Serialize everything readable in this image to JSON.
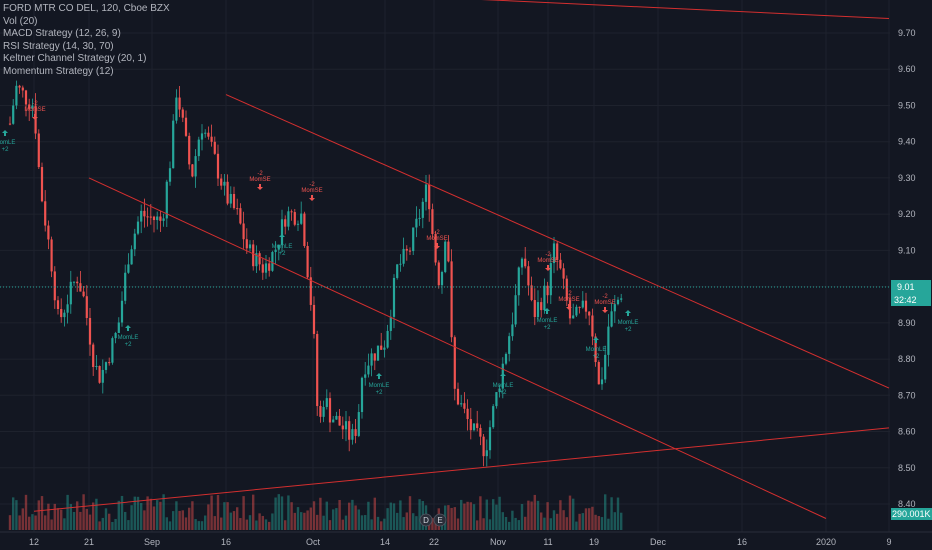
{
  "legend": {
    "symbol_line": "FORD MTR CO DEL, 120, Cboe BZX",
    "studies": [
      "Vol (20)",
      "MACD Strategy (12, 26, 9)",
      "RSI Strategy (14, 30, 70)",
      "Keltner Channel Strategy (20, 1)",
      "Momentum Strategy (12)"
    ]
  },
  "price_axis": {
    "ticks": [
      "9.70",
      "9.60",
      "9.50",
      "9.40",
      "9.30",
      "9.20",
      "9.10",
      "9.00",
      "8.90",
      "8.80",
      "8.70",
      "8.60",
      "8.50",
      "8.40"
    ],
    "last_price": "9.01",
    "countdown": "32:42",
    "volume_label": "290.001K",
    "last_price_color": "#26a69a",
    "volume_label_color": "#26a69a"
  },
  "time_axis": {
    "ticks": [
      "12",
      "21",
      "Sep",
      "16",
      "Oct",
      "14",
      "22",
      "Nov",
      "11",
      "19",
      "Dec",
      "16",
      "2020",
      "9"
    ]
  },
  "event_markers": [
    "D",
    "E"
  ],
  "signals": [
    {
      "label": "MomLE",
      "qty": "+2",
      "type": "long"
    },
    {
      "label": "MomLE",
      "qty": "+2",
      "type": "long"
    },
    {
      "label": "MomLE",
      "qty": "+2",
      "type": "long"
    },
    {
      "label": "MomLE",
      "qty": "+2",
      "type": "long"
    },
    {
      "label": "MomLE",
      "qty": "+2",
      "type": "long"
    },
    {
      "label": "MomLE",
      "qty": "+2",
      "type": "long"
    },
    {
      "label": "MomLE",
      "qty": "+2",
      "type": "long"
    },
    {
      "label": "MomLE",
      "qty": "+2",
      "type": "long"
    },
    {
      "label": "MomSE",
      "qty": "-2",
      "type": "short"
    },
    {
      "label": "MomSE",
      "qty": "-2",
      "type": "short"
    },
    {
      "label": "MomSE",
      "qty": "-2",
      "type": "short"
    },
    {
      "label": "MomSE",
      "qty": "-2",
      "type": "short"
    },
    {
      "label": "MomSE",
      "qty": "-2",
      "type": "short"
    },
    {
      "label": "MomSE",
      "qty": "-2",
      "type": "short"
    },
    {
      "label": "MomSE",
      "qty": "-2",
      "type": "short"
    }
  ],
  "colors": {
    "background": "#131722",
    "up": "#26a69a",
    "down": "#ef5350",
    "trendline": "#d32f2f",
    "grid": "#1e222d"
  },
  "chart_data": {
    "type": "candlestick",
    "ylim": [
      8.37,
      9.79
    ],
    "last_price": 9.01,
    "trendlines": [
      {
        "from": [
          "Aug 12",
          9.85
        ],
        "to": [
          "Jan 9",
          9.74
        ]
      },
      {
        "from": [
          "Sep 16",
          9.53
        ],
        "to": [
          "Jan 9",
          8.72
        ]
      },
      {
        "from": [
          "Aug 21",
          9.3
        ],
        "to": [
          "Jan 2",
          8.36
        ]
      },
      {
        "from": [
          "Aug 12",
          8.38
        ],
        "to": [
          "Jan 9",
          8.61
        ]
      }
    ],
    "price_path": [
      [
        "Aug 08",
        9.45
      ],
      [
        "Aug 09",
        9.55
      ],
      [
        "Aug 12",
        9.5
      ],
      [
        "Aug 13",
        9.28
      ],
      [
        "Aug 15",
        9.05
      ],
      [
        "Aug 16",
        8.9
      ],
      [
        "Aug 19",
        9.03
      ],
      [
        "Aug 20",
        8.98
      ],
      [
        "Aug 21",
        8.88
      ],
      [
        "Aug 22",
        8.78
      ],
      [
        "Aug 23",
        8.75
      ],
      [
        "Aug 26",
        8.88
      ],
      [
        "Aug 28",
        9.1
      ],
      [
        "Aug 30",
        9.2
      ],
      [
        "Sep 03",
        9.18
      ],
      [
        "Sep 05",
        9.38
      ],
      [
        "Sep 06",
        9.55
      ],
      [
        "Sep 09",
        9.3
      ],
      [
        "Sep 11",
        9.45
      ],
      [
        "Sep 13",
        9.38
      ],
      [
        "Sep 16",
        9.25
      ],
      [
        "Sep 18",
        9.2
      ],
      [
        "Sep 20",
        9.1
      ],
      [
        "Sep 23",
        9.05
      ],
      [
        "Sep 25",
        9.1
      ],
      [
        "Sep 27",
        9.2
      ],
      [
        "Sep 30",
        9.2
      ],
      [
        "Oct 01",
        8.9
      ],
      [
        "Oct 02",
        8.6
      ],
      [
        "Oct 03",
        8.7
      ],
      [
        "Oct 04",
        8.65
      ],
      [
        "Oct 07",
        8.6
      ],
      [
        "Oct 08",
        8.58
      ],
      [
        "Oct 09",
        8.62
      ],
      [
        "Oct 10",
        8.78
      ],
      [
        "Oct 14",
        8.85
      ],
      [
        "Oct 16",
        9.05
      ],
      [
        "Oct 18",
        9.1
      ],
      [
        "Oct 21",
        9.28
      ],
      [
        "Oct 22",
        9.1
      ],
      [
        "Oct 23",
        9.0
      ],
      [
        "Oct 24",
        9.2
      ],
      [
        "Oct 25",
        8.72
      ],
      [
        "Oct 28",
        8.6
      ],
      [
        "Oct 30",
        8.55
      ],
      [
        "Nov 01",
        8.72
      ],
      [
        "Nov 04",
        8.92
      ],
      [
        "Nov 06",
        9.1
      ],
      [
        "Nov 08",
        8.92
      ],
      [
        "Nov 11",
        9.0
      ],
      [
        "Nov 12",
        9.1
      ],
      [
        "Nov 13",
        9.05
      ],
      [
        "Nov 15",
        8.9
      ],
      [
        "Nov 18",
        8.95
      ],
      [
        "Nov 19",
        8.85
      ],
      [
        "Nov 20",
        8.72
      ],
      [
        "Nov 21",
        8.78
      ],
      [
        "Nov 22",
        8.9
      ],
      [
        "Nov 25",
        9.0
      ]
    ]
  }
}
